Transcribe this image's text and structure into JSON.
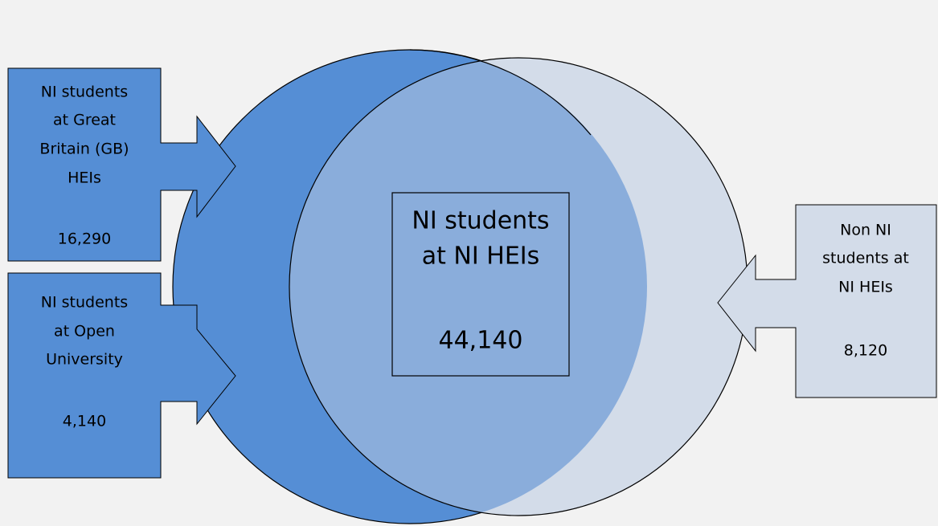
{
  "nodes": [
    {
      "label": [
        "NI students",
        "at Great",
        "Britain (GB)",
        "HEIs"
      ],
      "value": "16,290"
    },
    {
      "label": [
        "NI students",
        "at Open",
        "University"
      ],
      "value": "4,140"
    },
    {
      "label": [
        "NI students",
        "at NI HEIs"
      ],
      "value": "44,140"
    },
    {
      "label": [
        "Non NI",
        "students at",
        "NI HEIs"
      ],
      "value": "8,120"
    }
  ]
}
